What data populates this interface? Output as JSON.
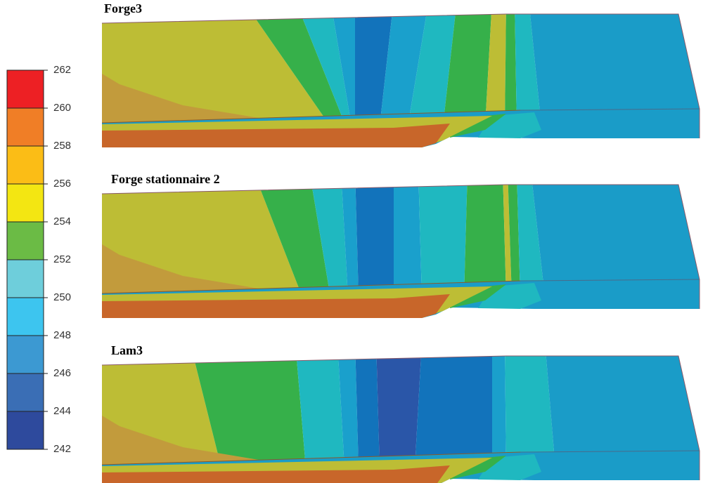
{
  "colorbar": {
    "ticks": [
      262,
      260,
      258,
      256,
      254,
      252,
      250,
      248,
      246,
      244,
      242
    ],
    "colors": [
      "#ed2024",
      "#f07e26",
      "#fbbd16",
      "#f3e612",
      "#6bbb45",
      "#6ecedb",
      "#3dc5ef",
      "#3c99d2",
      "#3a6eb5",
      "#2e4a9d"
    ]
  },
  "panels": [
    {
      "title": "Forge3"
    },
    {
      "title": "Forge stationnaire 2"
    },
    {
      "title": "Lam3"
    }
  ]
}
